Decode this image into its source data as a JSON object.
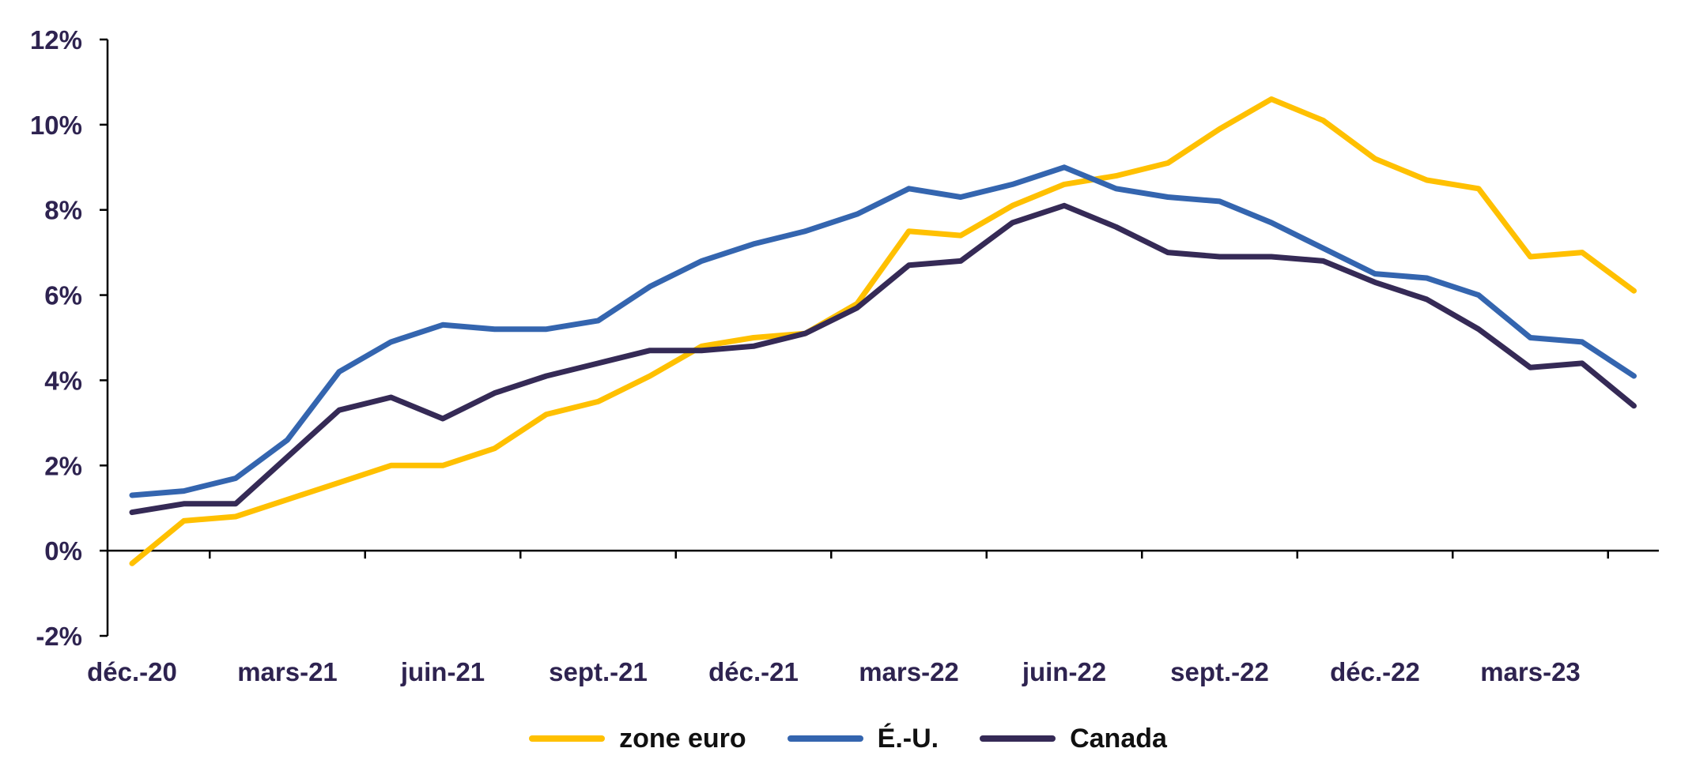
{
  "chart_data": {
    "type": "line",
    "title": "",
    "xlabel": "",
    "ylabel": "",
    "x": [
      "déc.-20",
      "janv.-21",
      "févr.-21",
      "mars-21",
      "avr.-21",
      "mai-21",
      "juin-21",
      "juil.-21",
      "août-21",
      "sept.-21",
      "oct.-21",
      "nov.-21",
      "déc.-21",
      "janv.-22",
      "févr.-22",
      "mars-22",
      "avr.-22",
      "mai-22",
      "juin-22",
      "juil.-22",
      "août-22",
      "sept.-22",
      "oct.-22",
      "nov.-22",
      "déc.-22",
      "janv.-23",
      "févr.-23",
      "mars-23",
      "avr.-23",
      "mai-23"
    ],
    "tick_labels": [
      "déc.-20",
      "mars-21",
      "juin-21",
      "sept.-21",
      "déc.-21",
      "mars-22",
      "juin-22",
      "sept.-22",
      "déc.-22",
      "mars-23"
    ],
    "y_tick_labels": [
      "-2%",
      "0%",
      "2%",
      "4%",
      "6%",
      "8%",
      "10%",
      "12%"
    ],
    "y_ticks": [
      -2,
      0,
      2,
      4,
      6,
      8,
      10,
      12
    ],
    "ylim": [
      -2,
      12
    ],
    "grid": false,
    "legend_position": "bottom-center",
    "series": [
      {
        "name": "zone euro",
        "color": "#FFC000",
        "values": [
          -0.3,
          0.7,
          0.8,
          1.2,
          1.6,
          2.0,
          2.0,
          2.4,
          3.2,
          3.5,
          4.1,
          4.8,
          5.0,
          5.1,
          5.8,
          7.5,
          7.4,
          8.1,
          8.6,
          8.8,
          9.1,
          9.9,
          10.6,
          10.1,
          9.2,
          8.7,
          8.5,
          6.9,
          7.0,
          6.1
        ]
      },
      {
        "name": "É.-U.",
        "color": "#3465AF",
        "values": [
          1.3,
          1.4,
          1.7,
          2.6,
          4.2,
          4.9,
          5.3,
          5.2,
          5.2,
          5.4,
          6.2,
          6.8,
          7.2,
          7.5,
          7.9,
          8.5,
          8.3,
          8.6,
          9.0,
          8.5,
          8.3,
          8.2,
          7.7,
          7.1,
          6.5,
          6.4,
          6.0,
          5.0,
          4.9,
          4.1
        ]
      },
      {
        "name": "Canada",
        "color": "#352A56",
        "values": [
          0.9,
          1.1,
          1.1,
          2.2,
          3.3,
          3.6,
          3.1,
          3.7,
          4.1,
          4.4,
          4.7,
          4.7,
          4.8,
          5.1,
          5.7,
          6.7,
          6.8,
          7.7,
          8.1,
          7.6,
          7.0,
          6.9,
          6.9,
          6.8,
          6.3,
          5.9,
          5.2,
          4.3,
          4.4,
          3.4
        ]
      }
    ]
  }
}
